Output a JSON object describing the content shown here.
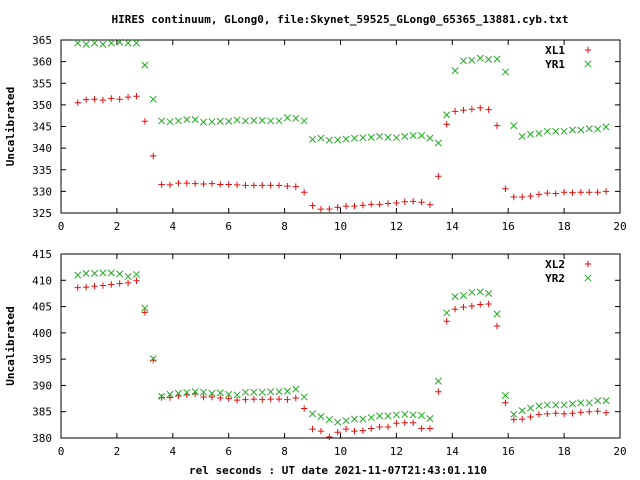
{
  "figure": {
    "title": "HIRES continuum, GLong0, file:Skynet_59525_GLong0_65365_13881.cyb.txt",
    "xlabel": "rel seconds : UT date 2021-11-07T21:43:01.110"
  },
  "chart_data": [
    {
      "type": "scatter",
      "ylabel": "Uncalibrated",
      "xlim": [
        0,
        20
      ],
      "ylim": [
        325,
        365
      ],
      "xticks": [
        "0",
        "2",
        "4",
        "6",
        "8",
        "10",
        "12",
        "14",
        "16",
        "18",
        "20"
      ],
      "yticks": [
        "325",
        "330",
        "335",
        "340",
        "345",
        "350",
        "355",
        "360",
        "365"
      ],
      "legend_position": "top-right",
      "grid": false,
      "x": [
        0.6,
        0.9,
        1.2,
        1.5,
        1.8,
        2.1,
        2.4,
        2.7,
        3.0,
        3.3,
        3.6,
        3.9,
        4.2,
        4.5,
        4.8,
        5.1,
        5.4,
        5.7,
        6.0,
        6.3,
        6.6,
        6.9,
        7.2,
        7.5,
        7.8,
        8.1,
        8.4,
        8.7,
        9.0,
        9.3,
        9.6,
        9.9,
        10.2,
        10.5,
        10.8,
        11.1,
        11.4,
        11.7,
        12.0,
        12.3,
        12.6,
        12.9,
        13.2,
        13.5,
        13.8,
        14.1,
        14.4,
        14.7,
        15.0,
        15.3,
        15.6,
        15.9,
        16.2,
        16.5,
        16.8,
        17.1,
        17.4,
        17.7,
        18.0,
        18.3,
        18.6,
        18.9,
        19.2,
        19.5
      ],
      "series": [
        {
          "name": "XL1",
          "marker": "+",
          "color": "#dd1111",
          "values": [
            350.5,
            351.2,
            351.3,
            351.1,
            351.5,
            351.3,
            351.8,
            352.0,
            346.2,
            338.2,
            331.6,
            331.5,
            331.9,
            331.9,
            331.8,
            331.7,
            331.8,
            331.6,
            331.6,
            331.5,
            331.4,
            331.4,
            331.4,
            331.4,
            331.4,
            331.2,
            331.1,
            329.8,
            326.7,
            325.9,
            325.9,
            326.3,
            326.6,
            326.6,
            326.8,
            327.0,
            327.0,
            327.2,
            327.3,
            327.6,
            327.7,
            327.5,
            326.9,
            333.5,
            345.5,
            348.5,
            348.8,
            349.0,
            349.3,
            348.9,
            345.2,
            330.6,
            328.7,
            328.7,
            328.9,
            329.3,
            329.6,
            329.5,
            329.8,
            329.7,
            329.8,
            329.8,
            329.8,
            330.0
          ]
        },
        {
          "name": "YR1",
          "marker": "x",
          "color": "#22aa22",
          "values": [
            364.3,
            364.0,
            364.3,
            364.0,
            364.3,
            364.5,
            364.3,
            364.3,
            359.2,
            351.3,
            346.3,
            346.1,
            346.3,
            346.6,
            346.6,
            346.0,
            346.1,
            346.2,
            346.2,
            346.5,
            346.3,
            346.4,
            346.4,
            346.3,
            346.3,
            347.0,
            346.9,
            346.3,
            342.0,
            342.3,
            341.8,
            341.9,
            342.1,
            342.3,
            342.4,
            342.5,
            342.7,
            342.5,
            342.4,
            342.7,
            342.9,
            342.9,
            342.3,
            341.2,
            347.7,
            357.9,
            360.2,
            360.3,
            360.8,
            360.5,
            360.6,
            357.6,
            345.2,
            342.7,
            343.2,
            343.4,
            343.9,
            343.9,
            343.9,
            344.2,
            344.2,
            344.5,
            344.4,
            344.9
          ]
        }
      ]
    },
    {
      "type": "scatter",
      "ylabel": "Uncalibrated",
      "xlim": [
        0,
        20
      ],
      "ylim": [
        380,
        415
      ],
      "xticks": [
        "0",
        "2",
        "4",
        "6",
        "8",
        "10",
        "12",
        "14",
        "16",
        "18",
        "20"
      ],
      "yticks": [
        "380",
        "385",
        "390",
        "395",
        "400",
        "405",
        "410",
        "415"
      ],
      "legend_position": "top-right",
      "grid": false,
      "x": [
        0.6,
        0.9,
        1.2,
        1.5,
        1.8,
        2.1,
        2.4,
        2.7,
        3.0,
        3.3,
        3.6,
        3.9,
        4.2,
        4.5,
        4.8,
        5.1,
        5.4,
        5.7,
        6.0,
        6.3,
        6.6,
        6.9,
        7.2,
        7.5,
        7.8,
        8.1,
        8.4,
        8.7,
        9.0,
        9.3,
        9.6,
        9.9,
        10.2,
        10.5,
        10.8,
        11.1,
        11.4,
        11.7,
        12.0,
        12.3,
        12.6,
        12.9,
        13.2,
        13.5,
        13.8,
        14.1,
        14.4,
        14.7,
        15.0,
        15.3,
        15.6,
        15.9,
        16.2,
        16.5,
        16.8,
        17.1,
        17.4,
        17.7,
        18.0,
        18.3,
        18.6,
        18.9,
        19.2,
        19.5
      ],
      "series": [
        {
          "name": "XL2",
          "marker": "+",
          "color": "#dd1111",
          "values": [
            408.6,
            408.7,
            408.9,
            409.0,
            409.2,
            409.4,
            409.5,
            409.9,
            403.9,
            394.8,
            387.7,
            387.7,
            388.0,
            388.2,
            388.4,
            387.8,
            387.8,
            387.6,
            387.5,
            387.2,
            387.3,
            387.4,
            387.3,
            387.4,
            387.4,
            387.3,
            387.6,
            385.6,
            381.7,
            381.3,
            380.2,
            381.1,
            381.7,
            381.3,
            381.4,
            381.8,
            382.1,
            382.1,
            382.8,
            382.9,
            382.9,
            381.8,
            381.8,
            388.8,
            402.2,
            404.5,
            404.9,
            405.1,
            405.4,
            405.5,
            401.3,
            386.7,
            383.5,
            383.6,
            384.0,
            384.5,
            384.6,
            384.7,
            384.6,
            384.7,
            384.9,
            385.0,
            385.1,
            384.8
          ]
        },
        {
          "name": "YR2",
          "marker": "x",
          "color": "#22aa22",
          "values": [
            411.0,
            411.3,
            411.3,
            411.4,
            411.4,
            411.2,
            410.7,
            411.1,
            404.7,
            395.1,
            387.9,
            388.3,
            388.5,
            388.7,
            388.8,
            388.7,
            388.5,
            388.6,
            388.3,
            388.2,
            388.7,
            388.7,
            388.7,
            388.8,
            388.8,
            388.9,
            389.3,
            387.8,
            384.6,
            384.1,
            383.5,
            383.0,
            383.3,
            383.6,
            383.6,
            383.9,
            384.2,
            384.2,
            384.4,
            384.5,
            384.4,
            384.3,
            383.7,
            390.8,
            403.8,
            406.9,
            407.1,
            407.7,
            407.8,
            407.5,
            403.6,
            388.1,
            384.5,
            385.2,
            385.7,
            386.1,
            386.3,
            386.3,
            386.3,
            386.5,
            386.7,
            386.7,
            387.1,
            387.1
          ]
        }
      ]
    }
  ]
}
